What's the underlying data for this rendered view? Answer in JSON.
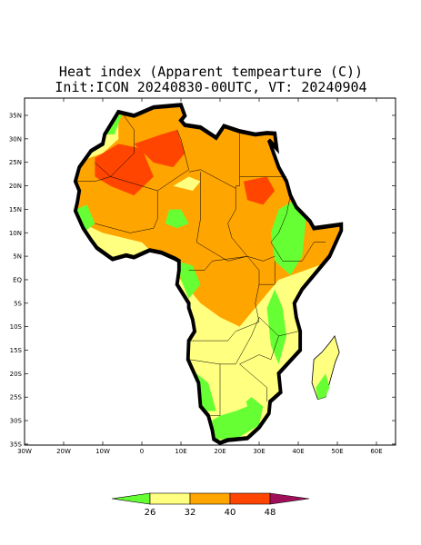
{
  "header": {
    "title": "Heat index (Apparent tempearture (C))",
    "subtitle": "Init:ICON 20240830-00UTC, VT: 20240904"
  },
  "axes": {
    "y_labels": [
      "35N",
      "30N",
      "25N",
      "20N",
      "15N",
      "10N",
      "5N",
      "EQ",
      "5S",
      "10S",
      "15S",
      "20S",
      "25S",
      "30S",
      "35S"
    ],
    "x_labels": [
      "30W",
      "20W",
      "10W",
      "0",
      "10E",
      "20E",
      "30E",
      "40E",
      "50E",
      "60E"
    ]
  },
  "colorbar": {
    "labels": [
      "26",
      "32",
      "40",
      "48"
    ]
  }
}
